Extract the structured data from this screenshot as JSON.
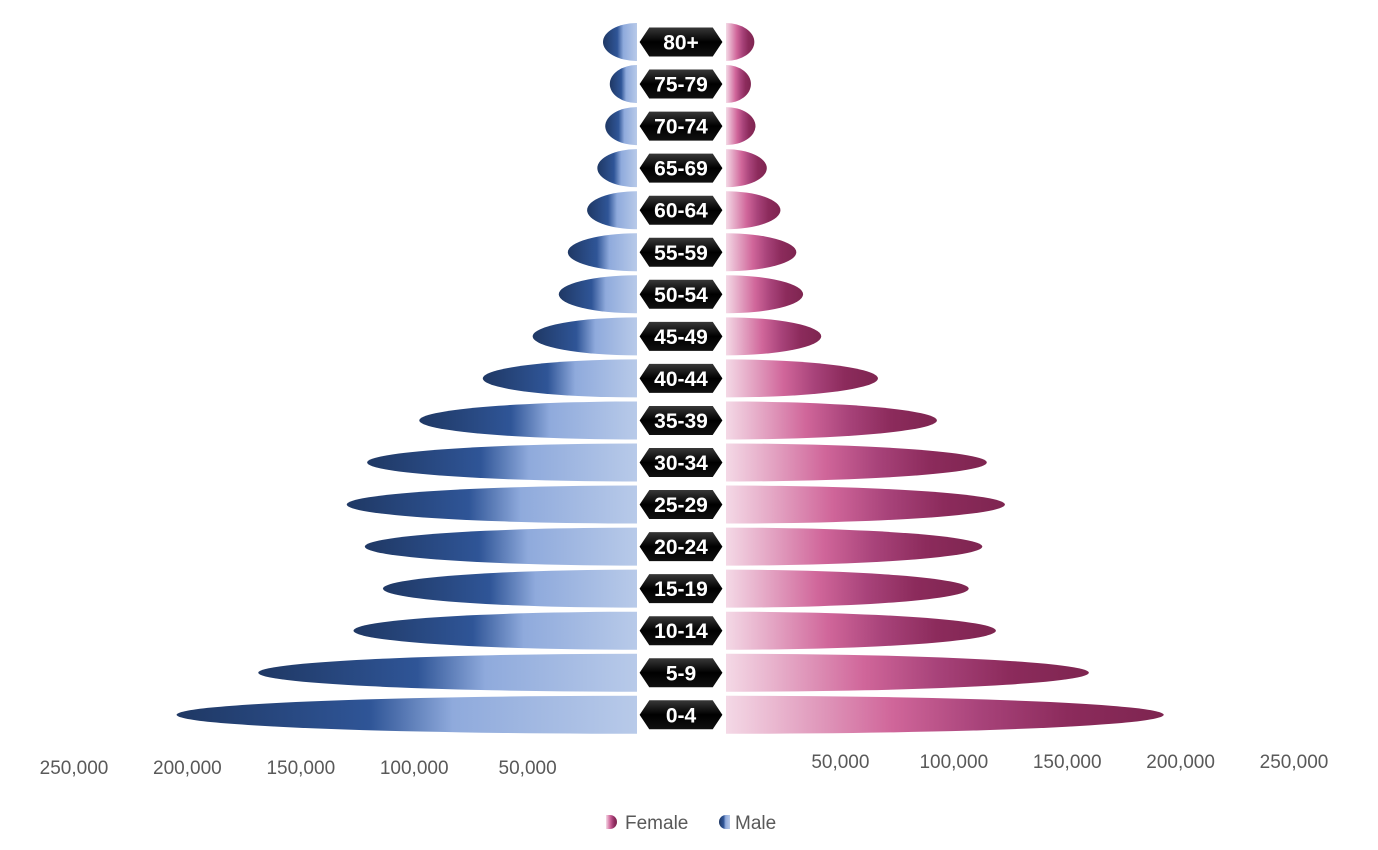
{
  "chart_data": {
    "type": "bar",
    "orientation": "horizontal-pyramid",
    "title": "",
    "xlabel": "",
    "ylabel": "",
    "categories": [
      "80+",
      "75-79",
      "70-74",
      "65-69",
      "60-64",
      "55-59",
      "50-54",
      "45-49",
      "40-44",
      "35-39",
      "30-34",
      "25-29",
      "20-24",
      "15-19",
      "10-14",
      "5-9",
      "0-4"
    ],
    "series": [
      {
        "name": "Male",
        "side": "left",
        "color": "#2f5597",
        "values": [
          15000,
          12000,
          14000,
          17500,
          22000,
          30500,
          34500,
          46000,
          68000,
          96000,
          119000,
          128000,
          120000,
          112000,
          125000,
          167000,
          203000
        ]
      },
      {
        "name": "Female",
        "side": "right",
        "color": "#8c2b5c",
        "values": [
          12500,
          11000,
          13000,
          18000,
          24000,
          31000,
          34000,
          42000,
          67000,
          93000,
          115000,
          123000,
          113000,
          107000,
          119000,
          160000,
          193000
        ]
      }
    ],
    "xlim": [
      0,
      250000
    ],
    "left_ticks": [
      "250,000",
      "200,000",
      "150,000",
      "100,000",
      "50,000"
    ],
    "right_ticks": [
      "50,000",
      "100,000",
      "150,000",
      "200,000",
      "250,000"
    ],
    "grid": false,
    "legend_position": "bottom",
    "legend": [
      "Female",
      "Male"
    ]
  }
}
